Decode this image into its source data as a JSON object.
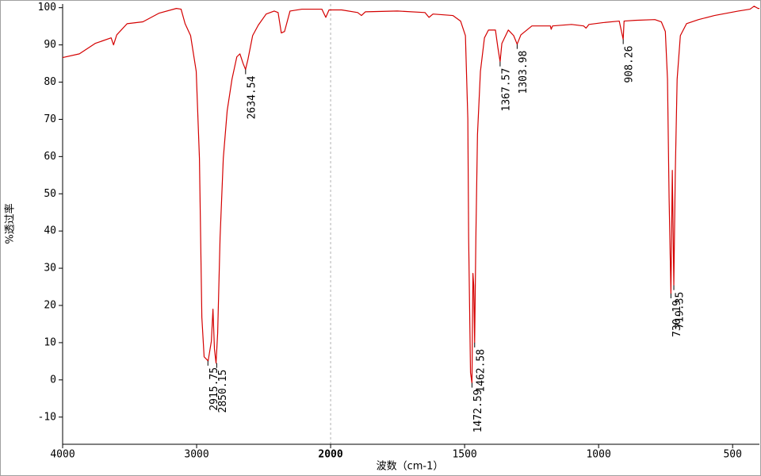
{
  "chart_data": {
    "type": "line",
    "x_label": "波数（cm-1）",
    "y_label": "%透过率",
    "xlim": [
      4000,
      400
    ],
    "xticks": [
      4000,
      3000,
      2000,
      1500,
      1000,
      500
    ],
    "x_split": 2000,
    "ylim": [
      -17.3,
      101
    ],
    "yticks": [
      -10,
      0,
      10,
      20,
      30,
      40,
      50,
      60,
      70,
      80,
      90,
      100
    ],
    "grid": false,
    "series": [
      {
        "color": "#d40000",
        "x": [
          4000,
          3875,
          3757,
          3638,
          3620,
          3596,
          3519,
          3401,
          3282,
          3151,
          3116,
          3086,
          3045,
          3003,
          2979,
          2961,
          2944,
          2914,
          2890,
          2878,
          2867,
          2855,
          2843,
          2825,
          2801,
          2772,
          2736,
          2700,
          2677,
          2653,
          2635,
          2617,
          2582,
          2540,
          2481,
          2421,
          2392,
          2368,
          2344,
          2303,
          2214,
          2065,
          2036,
          2012,
          1959,
          1899,
          1885,
          1870,
          1751,
          1648,
          1633,
          1618,
          1544,
          1515,
          1497,
          1488,
          1485,
          1478,
          1472.6,
          1469,
          1466,
          1462.6,
          1458,
          1452,
          1441,
          1426,
          1411,
          1385,
          1376,
          1367.6,
          1361,
          1337,
          1317,
          1304,
          1290,
          1249,
          1180,
          1177,
          1172,
          1101,
          1056,
          1047,
          1036,
          982,
          923,
          908.3,
          905,
          864,
          790,
          766,
          751,
          743,
          737,
          730.2,
          725,
          719.4,
          714,
          707,
          695,
          672,
          627,
          568,
          479,
          435,
          420,
          405,
          400
        ],
        "values": [
          86.6,
          87.6,
          90.4,
          91.9,
          90,
          92.7,
          95.7,
          96.2,
          98.5,
          99.8,
          99.6,
          95.7,
          92.5,
          82.9,
          59.5,
          16.8,
          6.2,
          5.1,
          10.4,
          19,
          8.3,
          4.5,
          12.6,
          38.2,
          59.5,
          72.3,
          80.8,
          86.8,
          87.6,
          85,
          83.4,
          86.1,
          92.5,
          95.3,
          98.3,
          99.1,
          98.7,
          93.2,
          93.6,
          99.1,
          99.6,
          99.6,
          97.4,
          99.4,
          99.4,
          98.7,
          97.9,
          98.9,
          99.1,
          98.7,
          97.4,
          98.3,
          97.9,
          96.4,
          92.5,
          70.1,
          38.2,
          1.9,
          -0.8,
          28.6,
          25.4,
          10,
          38.2,
          65.9,
          82.9,
          91.9,
          94,
          94,
          89.3,
          85.5,
          90.4,
          94,
          92.5,
          90.2,
          92.7,
          95.1,
          95.1,
          94.2,
          95.1,
          95.5,
          95.1,
          94.5,
          95.5,
          96,
          96.4,
          91.5,
          96.4,
          96.6,
          96.8,
          96.2,
          93.6,
          80.8,
          48.8,
          23.2,
          56.3,
          25.4,
          55.2,
          80.8,
          92.5,
          95.7,
          96.8,
          97.9,
          99.1,
          99.6,
          100.4,
          99.8,
          99.8
        ]
      }
    ],
    "annotations": [
      {
        "x": 2915.75,
        "y": 5.1
      },
      {
        "x": 2850.15,
        "y": 4.5
      },
      {
        "x": 2634.54,
        "y": 83.4
      },
      {
        "x": 1472.59,
        "y": -0.8
      },
      {
        "x": 1462.58,
        "y": 10
      },
      {
        "x": 1367.57,
        "y": 85.5
      },
      {
        "x": 1303.98,
        "y": 90.2
      },
      {
        "x": 908.26,
        "y": 91.5
      },
      {
        "x": 730.19,
        "y": 23.2
      },
      {
        "x": 719.35,
        "y": 25.4
      }
    ]
  }
}
